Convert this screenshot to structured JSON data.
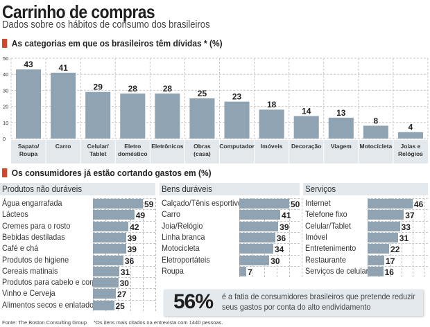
{
  "header": {
    "title": "Carrinho de compras",
    "subtitle": "Dados sobre os hábitos de consumo dos brasileiros"
  },
  "section1": {
    "title": "As categorias em que os brasileiros têm dívidas * (%)"
  },
  "section2": {
    "title": "Os consumidores já estão cortando gastos em  (%)"
  },
  "colors": {
    "bar": "#8fa3b2",
    "accent": "#d0482c",
    "label_bg": "#e3e8ec"
  },
  "chart_data": [
    {
      "type": "bar",
      "title": "As categorias em que os brasileiros têm dívidas * (%)",
      "xlabel": "",
      "ylabel": "",
      "ylim": [
        0,
        50
      ],
      "yticks": [
        0,
        10,
        20,
        30,
        40,
        50
      ],
      "grid": true,
      "categories": [
        [
          "Sapato/",
          "Roupa"
        ],
        [
          "Carro"
        ],
        [
          "Celular/",
          "Tablet"
        ],
        [
          "Eletro",
          "doméstico"
        ],
        [
          "Eletrônicos"
        ],
        [
          "Obras",
          "(casa)"
        ],
        [
          "Computador"
        ],
        [
          "Imóveis"
        ],
        [
          "Decoração"
        ],
        [
          "Viagem"
        ],
        [
          "Motocicleta"
        ],
        [
          "Joias e",
          "Relógios"
        ]
      ],
      "values": [
        43,
        41,
        29,
        28,
        28,
        25,
        23,
        18,
        14,
        13,
        8,
        4
      ]
    },
    {
      "type": "bar",
      "orientation": "horizontal",
      "title": "Produtos não duráveis",
      "categories": [
        "Água engarrafada",
        "Lácteos",
        "Cremes para o rosto",
        "Bebidas destiladas",
        "Café e chá",
        "Produtos de higiene",
        "Cereais matinais",
        "Produtos para cabelo e corpo",
        "Vinho e Cerveja",
        "Alimentos secos e enlatados"
      ],
      "values": [
        59,
        49,
        42,
        39,
        39,
        36,
        31,
        30,
        27,
        25
      ],
      "xlim": [
        0,
        70
      ]
    },
    {
      "type": "bar",
      "orientation": "horizontal",
      "title": "Bens duráveis",
      "categories": [
        "Calçado/Tênis esportivo",
        "Carro",
        "Joia/Relógio",
        "Linha branca",
        "Motocicleta",
        "Eletroportáteis",
        "Roupa"
      ],
      "values": [
        50,
        41,
        39,
        36,
        34,
        30,
        7
      ],
      "xlim": [
        0,
        60
      ]
    },
    {
      "type": "bar",
      "orientation": "horizontal",
      "title": "Serviços",
      "categories": [
        "Internet",
        "Telefone fixo",
        "Celular/Tablet",
        "Imóvel",
        "Entretenimento",
        "Restaurante",
        "Serviços de celular"
      ],
      "values": [
        46,
        37,
        33,
        31,
        22,
        17,
        16
      ],
      "xlim": [
        0,
        55
      ]
    }
  ],
  "callout": {
    "value": "56%",
    "line1": "é a fatia de consumidores brasileiros que pretende reduzir",
    "line2": "seus gastos por conta do alto endividamento"
  },
  "footer": {
    "source": "Fonte: The Boston Consulting Group",
    "note": "*Os itens mais citados na entrevista com 1440 pessoas."
  }
}
